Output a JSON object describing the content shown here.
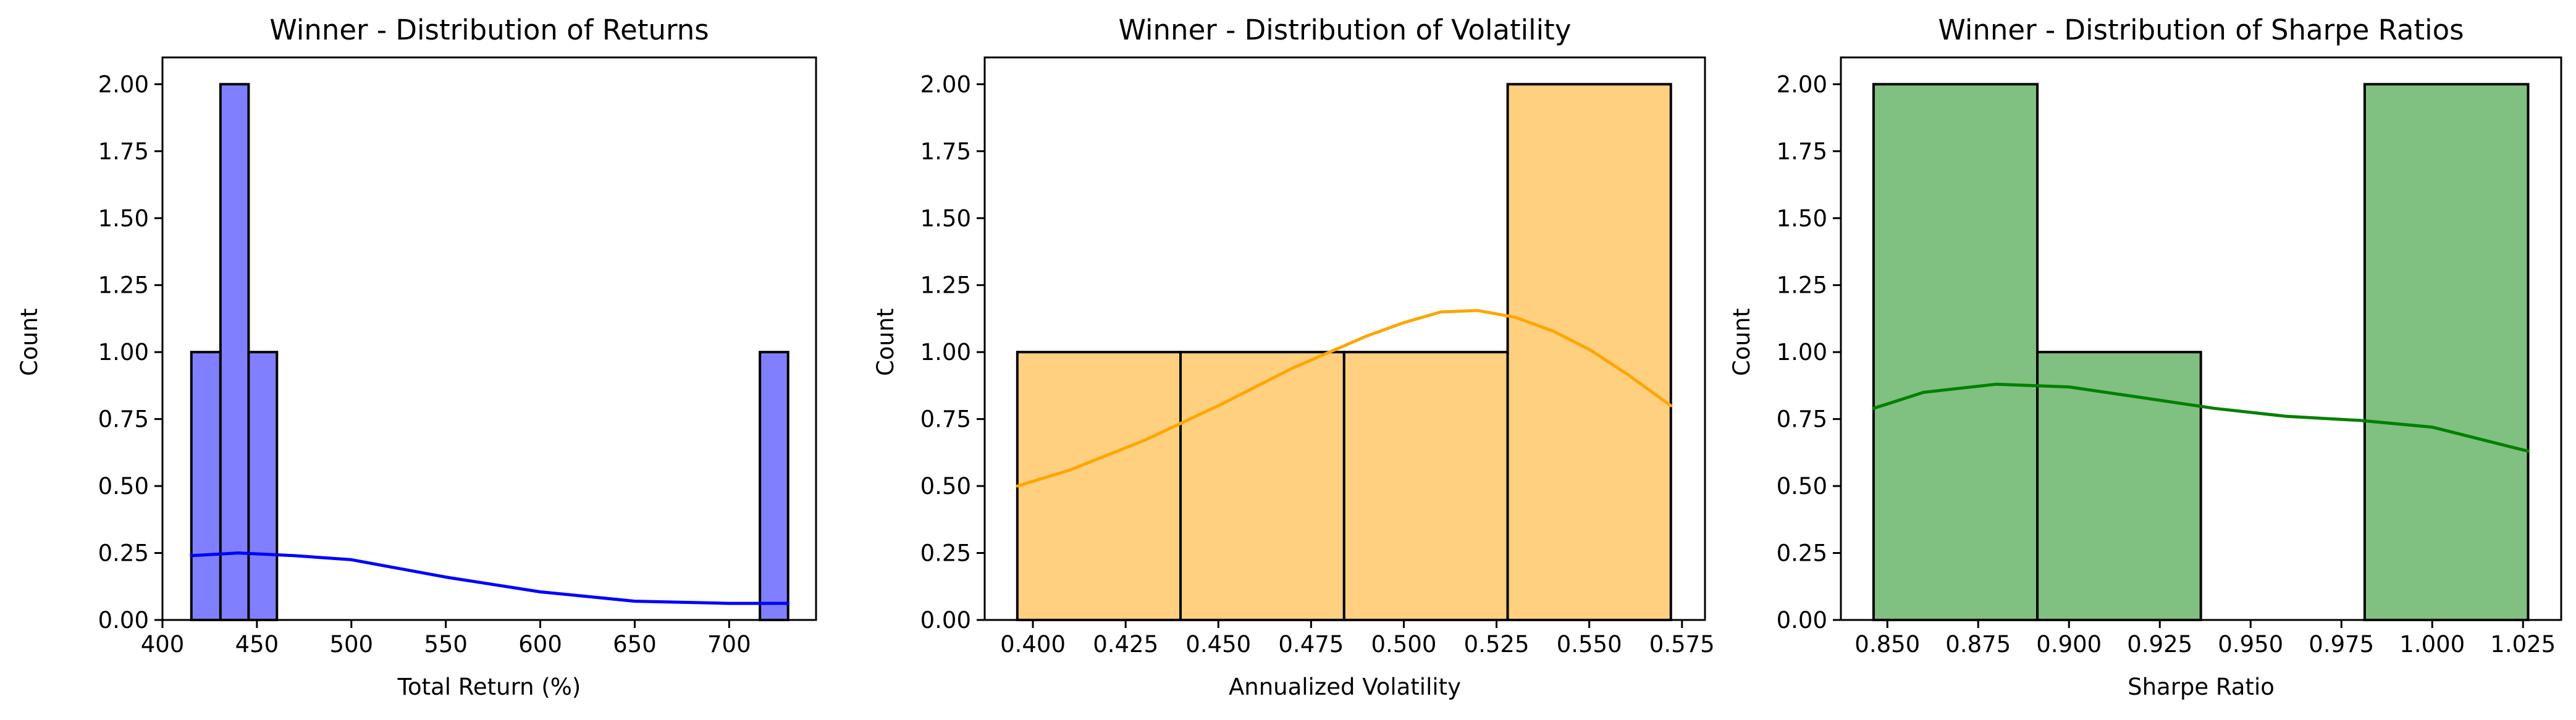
{
  "chart_data": [
    {
      "type": "histogram",
      "title": "Winner - Distribution of Returns",
      "xlabel": "Total Return (%)",
      "ylabel": "Count",
      "xlim": [
        400,
        746
      ],
      "ylim": [
        0,
        2.1
      ],
      "xticks": [
        400,
        450,
        500,
        550,
        600,
        650,
        700
      ],
      "xtick_labels": [
        "400",
        "450",
        "500",
        "550",
        "600",
        "650",
        "700"
      ],
      "yticks": [
        0,
        0.25,
        0.5,
        0.75,
        1.0,
        1.25,
        1.5,
        1.75,
        2.0
      ],
      "ytick_labels": [
        "0.00",
        "0.25",
        "0.50",
        "0.75",
        "1.00",
        "1.25",
        "1.50",
        "1.75",
        "2.00"
      ],
      "bins": [
        {
          "start": 415.3,
          "end": 430.7,
          "count": 1
        },
        {
          "start": 430.7,
          "end": 445.6,
          "count": 2
        },
        {
          "start": 445.6,
          "end": 460.6,
          "count": 1
        },
        {
          "start": 716.3,
          "end": 731.2,
          "count": 1
        }
      ],
      "kde": [
        [
          415.3,
          0.24
        ],
        [
          440,
          0.25
        ],
        [
          470,
          0.24
        ],
        [
          500,
          0.225
        ],
        [
          550,
          0.16
        ],
        [
          600,
          0.105
        ],
        [
          650,
          0.07
        ],
        [
          700,
          0.062
        ],
        [
          731.2,
          0.062
        ]
      ],
      "colors": {
        "fill": "#8080ff",
        "line": "#0000ff"
      }
    },
    {
      "type": "histogram",
      "title": "Winner - Distribution of Volatility",
      "xlabel": "Annualized Volatility",
      "ylabel": "Count",
      "xlim": [
        0.387,
        0.5812
      ],
      "ylim": [
        0,
        2.1
      ],
      "xticks": [
        0.4,
        0.425,
        0.45,
        0.475,
        0.5,
        0.525,
        0.55,
        0.575
      ],
      "xtick_labels": [
        "0.400",
        "0.425",
        "0.450",
        "0.475",
        "0.500",
        "0.525",
        "0.550",
        "0.575"
      ],
      "yticks": [
        0,
        0.25,
        0.5,
        0.75,
        1.0,
        1.25,
        1.5,
        1.75,
        2.0
      ],
      "ytick_labels": [
        "0.00",
        "0.25",
        "0.50",
        "0.75",
        "1.00",
        "1.25",
        "1.50",
        "1.75",
        "2.00"
      ],
      "bins": [
        {
          "start": 0.3958,
          "end": 0.4398,
          "count": 1
        },
        {
          "start": 0.4398,
          "end": 0.4839,
          "count": 1
        },
        {
          "start": 0.4839,
          "end": 0.528,
          "count": 1
        },
        {
          "start": 0.528,
          "end": 0.572,
          "count": 2
        }
      ],
      "kde": [
        [
          0.3958,
          0.5
        ],
        [
          0.41,
          0.56
        ],
        [
          0.43,
          0.67
        ],
        [
          0.45,
          0.8
        ],
        [
          0.47,
          0.94
        ],
        [
          0.49,
          1.06
        ],
        [
          0.5,
          1.11
        ],
        [
          0.51,
          1.15
        ],
        [
          0.52,
          1.155
        ],
        [
          0.53,
          1.13
        ],
        [
          0.54,
          1.08
        ],
        [
          0.55,
          1.01
        ],
        [
          0.56,
          0.92
        ],
        [
          0.572,
          0.8
        ]
      ],
      "colors": {
        "fill": "#ffd080",
        "line": "#ffa500"
      }
    },
    {
      "type": "histogram",
      "title": "Winner - Distribution of Sharpe Ratios",
      "xlabel": "Sharpe Ratio",
      "ylabel": "Count",
      "xlim": [
        0.8372,
        1.0355
      ],
      "ylim": [
        0,
        2.1
      ],
      "xticks": [
        0.85,
        0.875,
        0.9,
        0.925,
        0.95,
        0.975,
        1.0,
        1.025
      ],
      "xtick_labels": [
        "0.850",
        "0.875",
        "0.900",
        "0.925",
        "0.950",
        "0.975",
        "1.000",
        "1.025"
      ],
      "yticks": [
        0,
        0.25,
        0.5,
        0.75,
        1.0,
        1.25,
        1.5,
        1.75,
        2.0
      ],
      "ytick_labels": [
        "0.00",
        "0.25",
        "0.50",
        "0.75",
        "1.00",
        "1.25",
        "1.50",
        "1.75",
        "2.00"
      ],
      "bins": [
        {
          "start": 0.8462,
          "end": 0.8913,
          "count": 2
        },
        {
          "start": 0.8913,
          "end": 0.9363,
          "count": 1
        },
        {
          "start": 0.9363,
          "end": 0.9814,
          "count": 0
        },
        {
          "start": 0.9814,
          "end": 1.0264,
          "count": 2
        }
      ],
      "kde": [
        [
          0.8462,
          0.79
        ],
        [
          0.86,
          0.85
        ],
        [
          0.88,
          0.88
        ],
        [
          0.9,
          0.87
        ],
        [
          0.92,
          0.83
        ],
        [
          0.94,
          0.79
        ],
        [
          0.96,
          0.76
        ],
        [
          0.98,
          0.745
        ],
        [
          1.0,
          0.72
        ],
        [
          1.0264,
          0.63
        ]
      ],
      "colors": {
        "fill": "#80c080",
        "line": "#008000"
      }
    }
  ]
}
